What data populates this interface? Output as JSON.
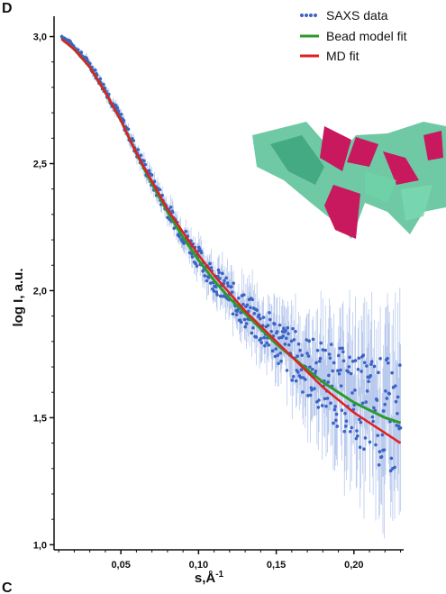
{
  "panel_label_top": "D",
  "panel_label_bottom": "C",
  "colors": {
    "saxs_points": "#3a63c4",
    "saxs_errorbars": "#9bb3e6",
    "bead_fit": "#2e9a2e",
    "md_fit": "#e02020",
    "axis": "#111111",
    "model_green": "#4cb38a",
    "model_pink": "#c8185e"
  },
  "inset": {
    "description_icon": "molecular-model-image"
  },
  "chart_data": {
    "type": "scatter",
    "title": "",
    "xlabel": "s,Å",
    "xlabel_superscript": "-1",
    "ylabel": "log I, a.u.",
    "xlim": [
      0.007,
      0.232
    ],
    "ylim": [
      0.98,
      3.08
    ],
    "x_ticks": [
      0.05,
      0.1,
      0.15,
      0.2
    ],
    "x_tick_labels": [
      "0,05",
      "0,10",
      "0,15",
      "0,20"
    ],
    "y_ticks": [
      1.0,
      1.5,
      2.0,
      2.5,
      3.0
    ],
    "y_tick_labels": [
      "1,0",
      "1,5",
      "2,0",
      "2,5",
      "3,0"
    ],
    "grid": false,
    "legend_position": "top-right",
    "series": [
      {
        "name": "SAXS data",
        "kind": "points_with_errorbars",
        "x": [
          0.012,
          0.02,
          0.03,
          0.04,
          0.05,
          0.06,
          0.07,
          0.08,
          0.09,
          0.1,
          0.11,
          0.12,
          0.13,
          0.14,
          0.15,
          0.16,
          0.17,
          0.18,
          0.19,
          0.2,
          0.21,
          0.22,
          0.23
        ],
        "y": [
          3.0,
          2.96,
          2.89,
          2.79,
          2.68,
          2.55,
          2.43,
          2.32,
          2.22,
          2.13,
          2.05,
          1.98,
          1.92,
          1.86,
          1.81,
          1.75,
          1.7,
          1.66,
          1.62,
          1.58,
          1.55,
          1.51,
          1.47
        ],
        "error": [
          0.01,
          0.01,
          0.015,
          0.02,
          0.02,
          0.025,
          0.03,
          0.035,
          0.04,
          0.05,
          0.06,
          0.07,
          0.08,
          0.09,
          0.1,
          0.12,
          0.14,
          0.16,
          0.18,
          0.2,
          0.22,
          0.26,
          0.28
        ]
      },
      {
        "name": "Bead model fit",
        "kind": "line",
        "x": [
          0.012,
          0.02,
          0.03,
          0.04,
          0.05,
          0.06,
          0.07,
          0.08,
          0.09,
          0.1,
          0.11,
          0.12,
          0.13,
          0.14,
          0.15,
          0.16,
          0.17,
          0.18,
          0.19,
          0.2,
          0.21,
          0.22,
          0.23
        ],
        "y": [
          2.99,
          2.95,
          2.88,
          2.78,
          2.67,
          2.54,
          2.42,
          2.31,
          2.21,
          2.12,
          2.04,
          1.97,
          1.91,
          1.85,
          1.79,
          1.74,
          1.69,
          1.64,
          1.6,
          1.56,
          1.53,
          1.5,
          1.48
        ]
      },
      {
        "name": "MD fit",
        "kind": "line",
        "x": [
          0.012,
          0.02,
          0.03,
          0.04,
          0.05,
          0.06,
          0.07,
          0.08,
          0.09,
          0.1,
          0.11,
          0.12,
          0.13,
          0.14,
          0.15,
          0.16,
          0.17,
          0.18,
          0.19,
          0.2,
          0.21,
          0.22,
          0.23
        ],
        "y": [
          2.99,
          2.95,
          2.88,
          2.78,
          2.67,
          2.54,
          2.43,
          2.32,
          2.23,
          2.14,
          2.06,
          1.99,
          1.92,
          1.86,
          1.8,
          1.74,
          1.68,
          1.62,
          1.57,
          1.52,
          1.48,
          1.44,
          1.4
        ]
      }
    ]
  }
}
